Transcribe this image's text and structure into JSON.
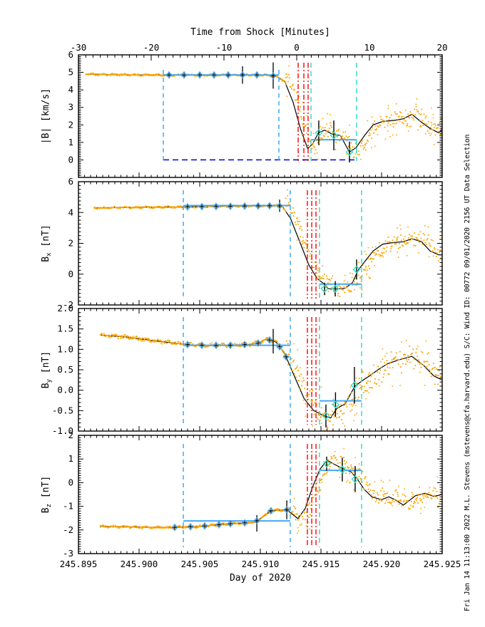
{
  "annotation": {
    "credit": "Fri Jan 14 11:13:00 2022   M.L. Stevens (mstevens@cfa.harvard.edu)   S/C: Wind ID: 00772  09/01/2020   2156 UT Data Selection"
  },
  "chart_data": {
    "type": "line",
    "title_top_axis": "Time from Shock [Minutes]",
    "xlabel": "Day of 2020",
    "x_range": [
      245.895,
      245.925
    ],
    "x_major_ticks": [
      245.895,
      245.9,
      245.905,
      245.91,
      245.915,
      245.92,
      245.925
    ],
    "x_tick_labels": [
      "245.895",
      "245.900",
      "245.905",
      "245.910",
      "245.915",
      "245.920",
      "245.925"
    ],
    "x_minor_step": 0.0005,
    "top_axis": {
      "range": [
        -30,
        20
      ],
      "major_ticks": [
        -30,
        -20,
        -10,
        0,
        10,
        20
      ],
      "labels": [
        "-30",
        "-20",
        "-10",
        "0",
        "10",
        "20"
      ],
      "minor_step": 1
    },
    "colors": {
      "data_points": "#FFA500",
      "average_line": "#000000",
      "selection": "#42A9F5",
      "window": "#35DFC6",
      "shock": "#FF0000",
      "baseline": "#0000CD",
      "frame": "#000000"
    },
    "panels": [
      {
        "name": "b-magnitude",
        "ylabel": {
          "main": "|B|",
          "sub": "",
          "unit": " [km/s]"
        },
        "ylim": [
          -1,
          6
        ],
        "ytick_values": [
          0,
          1,
          2,
          3,
          4,
          5,
          6
        ],
        "ytick_labels": [
          "0",
          "1",
          "2",
          "3",
          "4",
          "5",
          "6"
        ],
        "y_minor_step": 0.1,
        "trend": [
          [
            245.8956,
            4.9
          ],
          [
            245.898,
            4.87
          ],
          [
            245.901,
            4.85
          ],
          [
            245.904,
            4.85
          ],
          [
            245.907,
            4.85
          ],
          [
            245.909,
            4.85
          ],
          [
            245.9105,
            4.85
          ],
          [
            245.9113,
            4.78
          ],
          [
            245.912,
            4.5
          ],
          [
            245.9127,
            3.3
          ],
          [
            245.9133,
            1.8
          ],
          [
            245.9139,
            0.65
          ],
          [
            245.9143,
            0.9
          ],
          [
            245.9148,
            1.55
          ],
          [
            245.9153,
            1.7
          ],
          [
            245.916,
            1.45
          ],
          [
            245.9166,
            1.4
          ],
          [
            245.91735,
            0.45
          ],
          [
            245.9179,
            0.7
          ],
          [
            245.9186,
            1.4
          ],
          [
            245.9193,
            2.0
          ],
          [
            245.9201,
            2.2
          ],
          [
            245.921,
            2.25
          ],
          [
            245.9218,
            2.35
          ],
          [
            245.9225,
            2.6
          ],
          [
            245.9233,
            2.15
          ],
          [
            245.924,
            1.8
          ],
          [
            245.9247,
            1.55
          ],
          [
            245.925,
            1.7
          ]
        ],
        "scatter": {
          "x_start": 245.8956,
          "x_break": 245.9121,
          "pre_spread": 0.05,
          "post_spread": 0.55,
          "lag": 0.0004,
          "seed": 11
        },
        "selection_segments": [
          [
            245.902,
            245.91153,
            4.85
          ],
          [
            245.91418,
            245.91794,
            1.15
          ]
        ],
        "pre_markers": [
          245.90247,
          245.90371,
          245.905,
          245.90618,
          245.90735,
          245.90853,
          245.90971,
          245.91106
        ],
        "post_markers": [
          [
            245.91482,
            1.55,
            0.7
          ],
          [
            245.91606,
            1.4,
            0.85
          ],
          [
            245.91735,
            0.45,
            0.6
          ]
        ],
        "extra_error_bars": [
          [
            245.90853,
            4.85,
            0.5
          ],
          [
            245.91106,
            4.82,
            0.75
          ]
        ],
        "vlines_selection": [
          245.902,
          245.91153
        ],
        "vlines_shock": [
          245.91312,
          245.91359,
          245.91394
        ],
        "vlines_window": [
          245.91418,
          245.91794
        ],
        "baseline": [
          245.902,
          245.91794,
          0.0
        ]
      },
      {
        "name": "b-x",
        "ylabel": {
          "main": "B",
          "sub": "x",
          "unit": " [nT]"
        },
        "ylim": [
          -2,
          6
        ],
        "ytick_values": [
          -2,
          0,
          2,
          4,
          6
        ],
        "ytick_labels": [
          "-2",
          "0",
          "2",
          "4",
          "6"
        ],
        "y_minor_step": 0.25,
        "trend": [
          [
            245.8963,
            4.3
          ],
          [
            245.899,
            4.33
          ],
          [
            245.901,
            4.35
          ],
          [
            245.903,
            4.35
          ],
          [
            245.905,
            4.38
          ],
          [
            245.907,
            4.4
          ],
          [
            245.909,
            4.42
          ],
          [
            245.911,
            4.44
          ],
          [
            245.9118,
            4.42
          ],
          [
            245.9125,
            3.6
          ],
          [
            245.9133,
            2.0
          ],
          [
            245.914,
            0.6
          ],
          [
            245.9147,
            -0.3
          ],
          [
            245.9152,
            -0.6
          ],
          [
            245.9156,
            -0.95
          ],
          [
            245.9164,
            -0.95
          ],
          [
            245.917,
            -0.92
          ],
          [
            245.9176,
            -0.55
          ],
          [
            245.9181,
            0.3
          ],
          [
            245.9187,
            0.9
          ],
          [
            245.9193,
            1.5
          ],
          [
            245.9201,
            1.95
          ],
          [
            245.921,
            2.05
          ],
          [
            245.9218,
            2.1
          ],
          [
            245.9225,
            2.3
          ],
          [
            245.9233,
            2.1
          ],
          [
            245.924,
            1.5
          ],
          [
            245.9247,
            1.25
          ],
          [
            245.925,
            1.25
          ]
        ],
        "scatter": {
          "x_start": 245.8963,
          "x_break": 245.9121,
          "pre_spread": 0.06,
          "post_spread": 0.6,
          "lag": 0.0004,
          "seed": 22
        },
        "selection_segments": [
          [
            245.90365,
            245.91247,
            4.45
          ],
          [
            245.91488,
            245.91835,
            -0.65
          ]
        ],
        "pre_markers": [
          245.904,
          245.90518,
          245.90635,
          245.90753,
          245.90871,
          245.90982,
          245.91076,
          245.91159
        ],
        "post_markers": [
          [
            245.91529,
            -0.95,
            0.4
          ],
          [
            245.91618,
            -0.95,
            0.5
          ],
          [
            245.91794,
            0.3,
            0.65
          ]
        ],
        "extra_error_bars": [
          [
            245.91159,
            4.44,
            0.4
          ]
        ],
        "vlines_selection": [
          245.90365,
          245.91247
        ],
        "vlines_shock": [
          245.91388,
          245.91424,
          245.91459
        ],
        "vlines_window": [
          245.91488,
          245.91835
        ],
        "baseline": null
      },
      {
        "name": "b-y",
        "ylabel": {
          "main": "B",
          "sub": "y",
          "unit": " [nT]"
        },
        "ylim": [
          -1,
          2
        ],
        "ytick_values": [
          -1.0,
          -0.5,
          0.0,
          0.5,
          1.0,
          1.5,
          2.0
        ],
        "ytick_labels": [
          "-1.0",
          "-0.5",
          "0.0",
          "0.5",
          "1.0",
          "1.5",
          "2.0"
        ],
        "y_minor_step": 0.1,
        "trend": [
          [
            245.8968,
            1.35
          ],
          [
            245.899,
            1.3
          ],
          [
            245.901,
            1.22
          ],
          [
            245.903,
            1.15
          ],
          [
            245.9045,
            1.1
          ],
          [
            245.906,
            1.1
          ],
          [
            245.9075,
            1.1
          ],
          [
            245.909,
            1.12
          ],
          [
            245.9098,
            1.15
          ],
          [
            245.9105,
            1.25
          ],
          [
            245.9113,
            1.18
          ],
          [
            245.912,
            0.9
          ],
          [
            245.9128,
            0.35
          ],
          [
            245.9136,
            -0.2
          ],
          [
            245.9144,
            -0.5
          ],
          [
            245.9152,
            -0.62
          ],
          [
            245.9158,
            -0.68
          ],
          [
            245.9163,
            -0.45
          ],
          [
            245.917,
            -0.33
          ],
          [
            245.9178,
            0.1
          ],
          [
            245.9185,
            0.25
          ],
          [
            245.919,
            0.35
          ],
          [
            245.9197,
            0.5
          ],
          [
            245.9205,
            0.65
          ],
          [
            245.9215,
            0.75
          ],
          [
            245.9225,
            0.83
          ],
          [
            245.9235,
            0.6
          ],
          [
            245.9243,
            0.35
          ],
          [
            245.925,
            0.25
          ]
        ],
        "scatter": {
          "x_start": 245.8968,
          "x_break": 245.9121,
          "pre_spread": 0.04,
          "post_spread": 0.33,
          "lag": 0.0004,
          "seed": 33
        },
        "selection_segments": [
          [
            245.90365,
            245.91247,
            1.1
          ],
          [
            245.91488,
            245.91835,
            -0.26
          ]
        ],
        "pre_markers": [
          245.904,
          245.90518,
          245.90635,
          245.90753,
          245.90871,
          245.90982,
          245.91076,
          245.91159,
          245.91212
        ],
        "post_markers": [
          [
            245.91541,
            -0.63,
            0.28
          ],
          [
            245.9162,
            -0.35,
            0.3
          ],
          [
            245.91776,
            0.12,
            0.45
          ]
        ],
        "extra_error_bars": [
          [
            245.91106,
            1.2,
            0.3
          ]
        ],
        "vlines_selection": [
          245.90365,
          245.91247
        ],
        "vlines_shock": [
          245.91388,
          245.91424,
          245.91459
        ],
        "vlines_window": [
          245.91488,
          245.91835
        ],
        "baseline": null
      },
      {
        "name": "b-z",
        "ylabel": {
          "main": "B",
          "sub": "z",
          "unit": " [nT]"
        },
        "ylim": [
          -3,
          2
        ],
        "ytick_values": [
          -3,
          -2,
          -1,
          0,
          1,
          2
        ],
        "ytick_labels": [
          "-3",
          "-2",
          "-1",
          "0",
          "1",
          "2"
        ],
        "y_minor_step": 0.1,
        "trend": [
          [
            245.8968,
            -1.85
          ],
          [
            245.9,
            -1.88
          ],
          [
            245.9025,
            -1.9
          ],
          [
            245.905,
            -1.85
          ],
          [
            245.9065,
            -1.78
          ],
          [
            245.908,
            -1.72
          ],
          [
            245.9095,
            -1.68
          ],
          [
            245.9102,
            -1.45
          ],
          [
            245.9109,
            -1.18
          ],
          [
            245.9122,
            -1.15
          ],
          [
            245.9131,
            -1.52
          ],
          [
            245.9137,
            -1.1
          ],
          [
            245.9143,
            -0.2
          ],
          [
            245.9149,
            0.55
          ],
          [
            245.9155,
            0.95
          ],
          [
            245.9162,
            0.75
          ],
          [
            245.9168,
            0.6
          ],
          [
            245.9175,
            0.45
          ],
          [
            245.918,
            0.15
          ],
          [
            245.9186,
            -0.3
          ],
          [
            245.9192,
            -0.6
          ],
          [
            245.92,
            -0.72
          ],
          [
            245.9206,
            -0.6
          ],
          [
            245.9211,
            -0.72
          ],
          [
            245.9218,
            -0.95
          ],
          [
            245.9228,
            -0.55
          ],
          [
            245.9236,
            -0.45
          ],
          [
            245.9243,
            -0.58
          ],
          [
            245.925,
            -0.5
          ]
        ],
        "scatter": {
          "x_start": 245.8968,
          "x_break": 245.9122,
          "pre_spread": 0.045,
          "post_spread": 0.45,
          "lag": 0.0004,
          "seed": 44
        },
        "selection_segments": [
          [
            245.90365,
            245.91247,
            -1.62
          ],
          [
            245.91488,
            245.91835,
            0.52
          ]
        ],
        "pre_markers": [
          245.90294,
          245.90424,
          245.90541,
          245.90659,
          245.90753,
          245.90871,
          245.90971,
          245.91088,
          245.91218
        ],
        "post_markers": [
          [
            245.91547,
            0.8,
            0.3
          ],
          [
            245.91676,
            0.55,
            0.5
          ],
          [
            245.91782,
            0.15,
            0.55
          ]
        ],
        "extra_error_bars": [
          [
            245.90971,
            -1.72,
            0.35
          ],
          [
            245.91218,
            -1.15,
            0.4
          ]
        ],
        "vlines_selection": [
          245.90365,
          245.91247
        ],
        "vlines_shock": [
          245.91388,
          245.91424,
          245.91459
        ],
        "vlines_window": [
          245.91488,
          245.91835
        ],
        "baseline": null
      }
    ]
  }
}
